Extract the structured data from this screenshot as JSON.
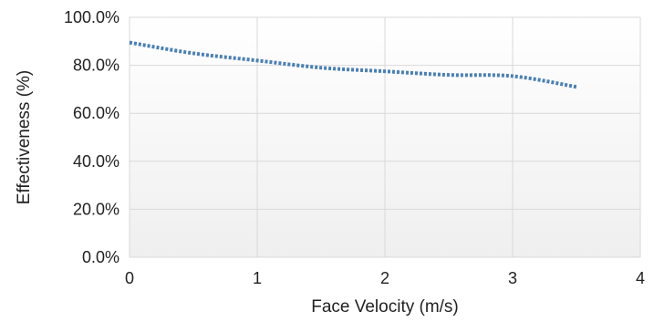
{
  "chart_data": {
    "type": "line",
    "title": "",
    "xlabel": "Face Velocity (m/s)",
    "ylabel": "Effectiveness (%)",
    "xlim": [
      0,
      4
    ],
    "ylim": [
      0,
      100
    ],
    "x_ticks": [
      0,
      1,
      2,
      3,
      4
    ],
    "x_tick_labels": [
      "0",
      "1",
      "2",
      "3",
      "4"
    ],
    "y_ticks": [
      0,
      20,
      40,
      60,
      80,
      100
    ],
    "y_tick_labels": [
      "0.0%",
      "20.0%",
      "40.0%",
      "60.0%",
      "80.0%",
      "100.0%"
    ],
    "grid": true,
    "legend": "none",
    "series": [
      {
        "line_style": "dotted",
        "color": "#4a7fb5",
        "x": [
          0,
          0.5,
          1,
          1.5,
          2,
          2.5,
          3,
          3.5
        ],
        "y": [
          89.5,
          85,
          82,
          79,
          77.5,
          76,
          75.5,
          71
        ]
      }
    ],
    "colors": {
      "plot_gradient_top": "#ffffff",
      "plot_gradient_bottom": "#efefef",
      "grid": "#d9d9d9"
    }
  }
}
